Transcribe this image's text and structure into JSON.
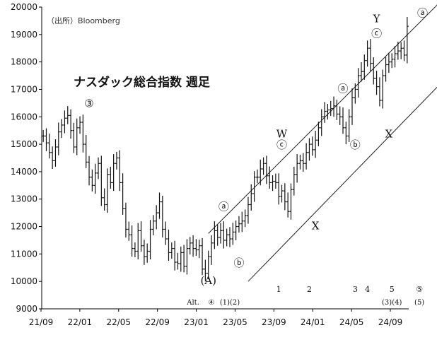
{
  "chart_data": {
    "type": "ohlc",
    "title": "ナスダック総合指数 週足",
    "source_note": "（出所）Bloomberg",
    "y_ticks": [
      "20000",
      "19000",
      "18000",
      "17000",
      "16000",
      "15000",
      "14000",
      "13000",
      "12000",
      "11000",
      "10000",
      "9000"
    ],
    "ylim": [
      9000,
      20000
    ],
    "x_ticks": [
      "21/09",
      "22/01",
      "22/05",
      "22/09",
      "23/01",
      "23/05",
      "23/09",
      "24/01",
      "24/05",
      "24/09"
    ],
    "series": [
      {
        "values": [
          15300,
          15050,
          14700,
          14400,
          14900,
          15450,
          15700,
          15950,
          16050,
          15500,
          14900,
          15600,
          15800,
          15000,
          14350,
          13800,
          13500,
          13950,
          14300,
          13050,
          12800,
          13900,
          13600,
          14300,
          14500,
          13600,
          12650,
          11900,
          11700,
          11200,
          11100,
          11850,
          11300,
          10900,
          11100,
          11900,
          12200,
          12500,
          12900,
          11900,
          11550,
          11050,
          11200,
          10700,
          10650,
          11050,
          10550,
          11200,
          11400,
          11200,
          11150,
          11300,
          10450,
          10300,
          10900,
          11400,
          11850,
          11600,
          11850,
          11500,
          11700,
          11550,
          11800,
          12000,
          12100,
          12200,
          12400,
          12800,
          13200,
          13800,
          13800,
          14100,
          14300,
          13850,
          13600,
          13650,
          13600,
          13100,
          13300,
          12900,
          12550,
          13350,
          13900,
          14300,
          14400,
          14300,
          14700,
          15000,
          14800,
          15150,
          15600,
          16000,
          16200,
          16250,
          16300,
          16400,
          16100,
          16000,
          15600,
          15300,
          16000,
          16700,
          17000,
          17500,
          17650,
          18050,
          18500,
          17950,
          17400,
          17100,
          16600,
          17500,
          17900,
          18000,
          18100,
          18300,
          18400,
          18500,
          18250,
          19300
        ]
      }
    ],
    "wave_labels": [
      {
        "text": "③",
        "x": 15,
        "y": 16350
      },
      {
        "text": "ⓐ",
        "x": 59,
        "y": 12600
      },
      {
        "text": "ⓑ",
        "x": 64,
        "y": 10550
      },
      {
        "text": "(A)",
        "x": 54,
        "y": 9900
      },
      {
        "text": "W",
        "x": 78,
        "y": 15250
      },
      {
        "text": "ⓒ",
        "x": 78,
        "y": 14850
      },
      {
        "text": "X",
        "x": 89,
        "y": 11900
      },
      {
        "text": "ⓐ",
        "x": 98,
        "y": 16900
      },
      {
        "text": "ⓑ",
        "x": 102,
        "y": 14850
      },
      {
        "text": "Y",
        "x": 109,
        "y": 19450
      },
      {
        "text": "ⓒ",
        "x": 109,
        "y": 18900
      },
      {
        "text": "X",
        "x": 113,
        "y": 15250
      },
      {
        "text": "ⓐ",
        "x": 124,
        "y": 19650
      }
    ],
    "count_labels": [
      {
        "text": "1",
        "x": 77
      },
      {
        "text": "2",
        "x": 87
      },
      {
        "text": "3",
        "x": 102
      },
      {
        "text": "4",
        "x": 106
      },
      {
        "text": "5",
        "x": 114
      },
      {
        "text": "⑤",
        "x": 123
      }
    ],
    "count_labels_low": [
      {
        "text": "Alt.",
        "x": 49
      },
      {
        "text": "④",
        "x": 55
      },
      {
        "text": "(1)(2)",
        "x": 61
      },
      {
        "text": "(3)(4)",
        "x": 114
      },
      {
        "text": "(5)",
        "x": 123
      }
    ],
    "channel": {
      "upper": {
        "x": [
          54,
          129
        ],
        "y": [
          11750,
          20100
        ]
      },
      "lower": {
        "x": [
          67,
          132
        ],
        "y": [
          10000,
          17450
        ]
      }
    }
  }
}
